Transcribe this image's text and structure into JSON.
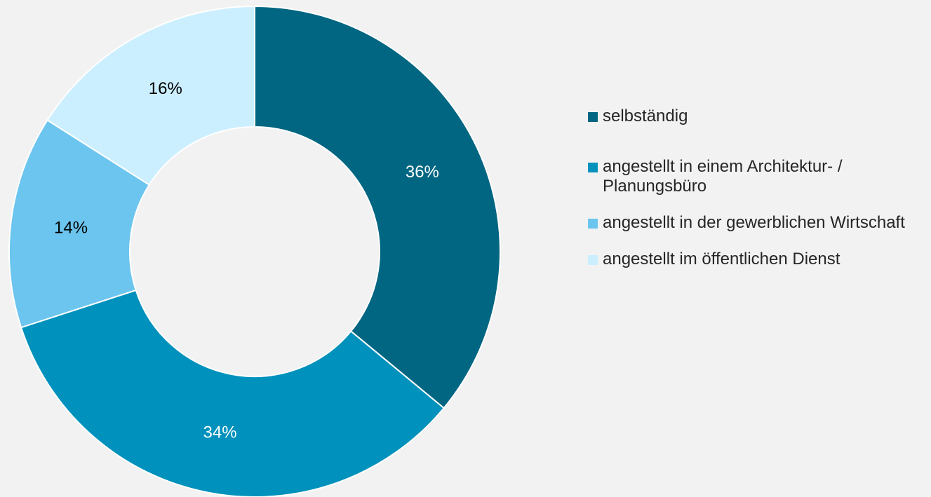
{
  "chart_data": {
    "type": "pie",
    "categories": [
      "selbständig",
      "angestellt in einem Architektur- / Planungsbüro",
      "angestellt in der gewerblichen Wirtschaft",
      "angestellt im öffentlichen Dienst"
    ],
    "values": [
      36,
      34,
      14,
      16
    ],
    "value_labels": [
      "36%",
      "34%",
      "14%",
      "16%"
    ],
    "colors": [
      "#006682",
      "#0091bc",
      "#6cc5ee",
      "#ccefff"
    ],
    "legend": "right"
  }
}
